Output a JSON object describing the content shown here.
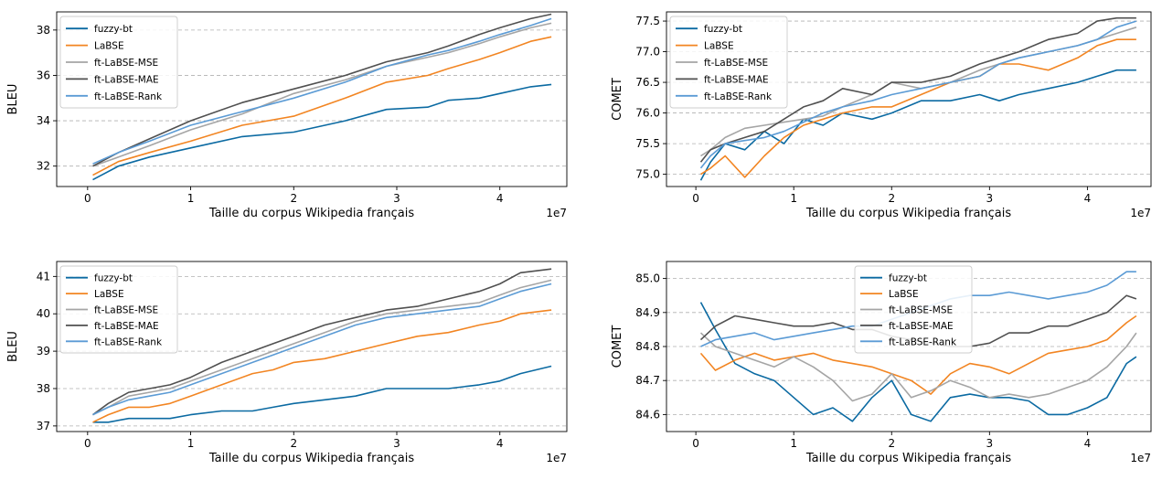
{
  "colors": {
    "fuzzy-bt": "#0b6aa2",
    "LaBSE": "#f28522",
    "ft-LaBSE-MSE": "#a5a5a5",
    "ft-LaBSE-MAE": "#505050",
    "ft-LaBSE-Rank": "#5b9bd5"
  },
  "chart_data": [
    {
      "type": "line",
      "title": "",
      "xlabel": "Taille du corpus Wikipedia français",
      "ylabel": "BLEU",
      "x_offset_label": "1e7",
      "xlim": [
        -0.3,
        4.65
      ],
      "ylim": [
        31.1,
        38.8
      ],
      "xticks": [
        0,
        1,
        2,
        3,
        4
      ],
      "yticks": [
        32,
        34,
        36,
        38
      ],
      "grid": "y-dashed",
      "legend_position": "upper-left",
      "series": [
        {
          "name": "fuzzy-bt",
          "x": [
            0.05,
            0.3,
            0.6,
            1.0,
            1.5,
            2.0,
            2.5,
            2.9,
            3.3,
            3.5,
            3.8,
            4.0,
            4.3,
            4.5
          ],
          "y": [
            31.4,
            32.0,
            32.4,
            32.8,
            33.3,
            33.5,
            34.0,
            34.5,
            34.6,
            34.9,
            35.0,
            35.2,
            35.5,
            35.6
          ]
        },
        {
          "name": "LaBSE",
          "x": [
            0.05,
            0.3,
            0.6,
            1.0,
            1.5,
            2.0,
            2.5,
            2.9,
            3.3,
            3.5,
            3.8,
            4.0,
            4.3,
            4.5
          ],
          "y": [
            31.6,
            32.2,
            32.6,
            33.1,
            33.8,
            34.2,
            35.0,
            35.7,
            36.0,
            36.3,
            36.7,
            37.0,
            37.5,
            37.7
          ]
        },
        {
          "name": "ft-LaBSE-MSE",
          "x": [
            0.05,
            0.3,
            0.6,
            1.0,
            1.5,
            2.0,
            2.5,
            2.9,
            3.3,
            3.5,
            3.8,
            4.0,
            4.3,
            4.5
          ],
          "y": [
            32.0,
            32.4,
            32.9,
            33.6,
            34.3,
            35.2,
            35.8,
            36.4,
            36.8,
            37.0,
            37.4,
            37.7,
            38.1,
            38.3
          ]
        },
        {
          "name": "ft-LaBSE-MAE",
          "x": [
            0.05,
            0.3,
            0.6,
            1.0,
            1.5,
            2.0,
            2.5,
            2.9,
            3.3,
            3.5,
            3.8,
            4.0,
            4.3,
            4.5
          ],
          "y": [
            32.0,
            32.6,
            33.2,
            34.0,
            34.8,
            35.4,
            36.0,
            36.6,
            37.0,
            37.3,
            37.8,
            38.1,
            38.5,
            38.7
          ]
        },
        {
          "name": "ft-LaBSE-Rank",
          "x": [
            0.05,
            0.3,
            0.6,
            1.0,
            1.5,
            2.0,
            2.5,
            2.9,
            3.3,
            3.5,
            3.8,
            4.0,
            4.3,
            4.5
          ],
          "y": [
            32.1,
            32.6,
            33.1,
            33.8,
            34.4,
            35.0,
            35.7,
            36.4,
            36.9,
            37.1,
            37.5,
            37.8,
            38.2,
            38.5
          ]
        }
      ]
    },
    {
      "type": "line",
      "title": "",
      "xlabel": "Taille du corpus Wikipedia français",
      "ylabel": "COMET",
      "x_offset_label": "1e7",
      "xlim": [
        -0.3,
        4.65
      ],
      "ylim": [
        74.8,
        77.65
      ],
      "xticks": [
        0,
        1,
        2,
        3,
        4
      ],
      "yticks": [
        75.0,
        75.5,
        76.0,
        76.5,
        77.0,
        77.5
      ],
      "ytick_labels": [
        "75.0",
        "75.5",
        "76.0",
        "76.5",
        "77.0",
        "77.5"
      ],
      "grid": "y-dashed",
      "legend_position": "upper-left",
      "series": [
        {
          "name": "fuzzy-bt",
          "x": [
            0.05,
            0.15,
            0.3,
            0.5,
            0.7,
            0.9,
            1.1,
            1.3,
            1.5,
            1.8,
            2.0,
            2.3,
            2.6,
            2.9,
            3.1,
            3.3,
            3.6,
            3.9,
            4.1,
            4.3,
            4.5
          ],
          "y": [
            74.9,
            75.2,
            75.5,
            75.4,
            75.7,
            75.5,
            75.9,
            75.8,
            76.0,
            75.9,
            76.0,
            76.2,
            76.2,
            76.3,
            76.2,
            76.3,
            76.4,
            76.5,
            76.6,
            76.7,
            76.7
          ]
        },
        {
          "name": "LaBSE",
          "x": [
            0.05,
            0.15,
            0.3,
            0.5,
            0.7,
            0.9,
            1.1,
            1.3,
            1.5,
            1.8,
            2.0,
            2.3,
            2.6,
            2.9,
            3.1,
            3.3,
            3.6,
            3.9,
            4.1,
            4.3,
            4.5
          ],
          "y": [
            75.0,
            75.1,
            75.3,
            74.95,
            75.3,
            75.6,
            75.8,
            75.9,
            76.0,
            76.1,
            76.1,
            76.3,
            76.5,
            76.6,
            76.8,
            76.8,
            76.7,
            76.9,
            77.1,
            77.2,
            77.2
          ]
        },
        {
          "name": "ft-LaBSE-MSE",
          "x": [
            0.05,
            0.15,
            0.3,
            0.5,
            0.7,
            0.9,
            1.1,
            1.3,
            1.5,
            1.8,
            2.0,
            2.3,
            2.6,
            2.9,
            3.1,
            3.3,
            3.6,
            3.9,
            4.1,
            4.3,
            4.5
          ],
          "y": [
            75.3,
            75.4,
            75.6,
            75.75,
            75.8,
            75.85,
            75.9,
            75.95,
            76.1,
            76.3,
            76.5,
            76.4,
            76.5,
            76.7,
            76.8,
            76.9,
            77.0,
            77.1,
            77.2,
            77.3,
            77.4
          ]
        },
        {
          "name": "ft-LaBSE-MAE",
          "x": [
            0.05,
            0.15,
            0.3,
            0.5,
            0.7,
            0.9,
            1.1,
            1.3,
            1.5,
            1.8,
            2.0,
            2.3,
            2.6,
            2.9,
            3.1,
            3.3,
            3.6,
            3.9,
            4.1,
            4.3,
            4.5
          ],
          "y": [
            75.2,
            75.4,
            75.5,
            75.6,
            75.7,
            75.9,
            76.1,
            76.2,
            76.4,
            76.3,
            76.5,
            76.5,
            76.6,
            76.8,
            76.9,
            77.0,
            77.2,
            77.3,
            77.5,
            77.55,
            77.55
          ]
        },
        {
          "name": "ft-LaBSE-Rank",
          "x": [
            0.05,
            0.15,
            0.3,
            0.5,
            0.7,
            0.9,
            1.1,
            1.3,
            1.5,
            1.8,
            2.0,
            2.3,
            2.6,
            2.9,
            3.1,
            3.3,
            3.6,
            3.9,
            4.1,
            4.3,
            4.5
          ],
          "y": [
            75.1,
            75.3,
            75.5,
            75.55,
            75.6,
            75.7,
            75.85,
            76.0,
            76.1,
            76.2,
            76.3,
            76.4,
            76.5,
            76.6,
            76.8,
            76.9,
            77.0,
            77.1,
            77.2,
            77.4,
            77.5
          ]
        }
      ]
    },
    {
      "type": "line",
      "title": "",
      "xlabel": "Taille du corpus Wikipedia français",
      "ylabel": "BLEU",
      "x_offset_label": "1e7",
      "xlim": [
        -0.3,
        4.65
      ],
      "ylim": [
        36.85,
        41.4
      ],
      "xticks": [
        0,
        1,
        2,
        3,
        4
      ],
      "yticks": [
        37,
        38,
        39,
        40,
        41
      ],
      "grid": "y-dashed",
      "legend_position": "upper-left",
      "series": [
        {
          "name": "fuzzy-bt",
          "x": [
            0.05,
            0.2,
            0.4,
            0.6,
            0.8,
            1.0,
            1.3,
            1.6,
            1.8,
            2.0,
            2.3,
            2.6,
            2.9,
            3.2,
            3.5,
            3.8,
            4.0,
            4.2,
            4.5
          ],
          "y": [
            37.1,
            37.1,
            37.2,
            37.2,
            37.2,
            37.3,
            37.4,
            37.4,
            37.5,
            37.6,
            37.7,
            37.8,
            38.0,
            38.0,
            38.0,
            38.1,
            38.2,
            38.4,
            38.6
          ]
        },
        {
          "name": "LaBSE",
          "x": [
            0.05,
            0.2,
            0.4,
            0.6,
            0.8,
            1.0,
            1.3,
            1.6,
            1.8,
            2.0,
            2.3,
            2.6,
            2.9,
            3.2,
            3.5,
            3.8,
            4.0,
            4.2,
            4.5
          ],
          "y": [
            37.1,
            37.3,
            37.5,
            37.5,
            37.6,
            37.8,
            38.1,
            38.4,
            38.5,
            38.7,
            38.8,
            39.0,
            39.2,
            39.4,
            39.5,
            39.7,
            39.8,
            40.0,
            40.1
          ]
        },
        {
          "name": "ft-LaBSE-MSE",
          "x": [
            0.05,
            0.2,
            0.4,
            0.6,
            0.8,
            1.0,
            1.3,
            1.6,
            1.8,
            2.0,
            2.3,
            2.6,
            2.9,
            3.2,
            3.5,
            3.8,
            4.0,
            4.2,
            4.5
          ],
          "y": [
            37.3,
            37.5,
            37.8,
            37.9,
            38.0,
            38.2,
            38.5,
            38.8,
            39.0,
            39.2,
            39.5,
            39.8,
            40.0,
            40.1,
            40.2,
            40.3,
            40.5,
            40.7,
            40.9
          ]
        },
        {
          "name": "ft-LaBSE-MAE",
          "x": [
            0.05,
            0.2,
            0.4,
            0.6,
            0.8,
            1.0,
            1.3,
            1.6,
            1.8,
            2.0,
            2.3,
            2.6,
            2.9,
            3.2,
            3.5,
            3.8,
            4.0,
            4.2,
            4.5
          ],
          "y": [
            37.3,
            37.6,
            37.9,
            38.0,
            38.1,
            38.3,
            38.7,
            39.0,
            39.2,
            39.4,
            39.7,
            39.9,
            40.1,
            40.2,
            40.4,
            40.6,
            40.8,
            41.1,
            41.2
          ]
        },
        {
          "name": "ft-LaBSE-Rank",
          "x": [
            0.05,
            0.2,
            0.4,
            0.6,
            0.8,
            1.0,
            1.3,
            1.6,
            1.8,
            2.0,
            2.3,
            2.6,
            2.9,
            3.2,
            3.5,
            3.8,
            4.0,
            4.2,
            4.5
          ],
          "y": [
            37.3,
            37.5,
            37.7,
            37.8,
            37.9,
            38.1,
            38.4,
            38.7,
            38.9,
            39.1,
            39.4,
            39.7,
            39.9,
            40.0,
            40.1,
            40.2,
            40.4,
            40.6,
            40.8
          ]
        }
      ]
    },
    {
      "type": "line",
      "title": "",
      "xlabel": "Taille du corpus Wikipedia français",
      "ylabel": "COMET",
      "x_offset_label": "1e7",
      "xlim": [
        -0.3,
        4.65
      ],
      "ylim": [
        84.55,
        85.05
      ],
      "xticks": [
        0,
        1,
        2,
        3,
        4
      ],
      "yticks": [
        84.6,
        84.7,
        84.8,
        84.9,
        85.0
      ],
      "ytick_labels": [
        "84.6",
        "84.7",
        "84.8",
        "84.9",
        "85.0"
      ],
      "grid": "y-dashed",
      "legend_position": "upper-center",
      "series": [
        {
          "name": "fuzzy-bt",
          "x": [
            0.05,
            0.2,
            0.4,
            0.6,
            0.8,
            1.0,
            1.2,
            1.4,
            1.6,
            1.8,
            2.0,
            2.2,
            2.4,
            2.6,
            2.8,
            3.0,
            3.2,
            3.4,
            3.6,
            3.8,
            4.0,
            4.2,
            4.4,
            4.5
          ],
          "y": [
            84.93,
            84.85,
            84.75,
            84.72,
            84.7,
            84.65,
            84.6,
            84.62,
            84.58,
            84.65,
            84.7,
            84.6,
            84.58,
            84.65,
            84.66,
            84.65,
            84.65,
            84.64,
            84.6,
            84.6,
            84.62,
            84.65,
            84.75,
            84.77
          ]
        },
        {
          "name": "LaBSE",
          "x": [
            0.05,
            0.2,
            0.4,
            0.6,
            0.8,
            1.0,
            1.2,
            1.4,
            1.6,
            1.8,
            2.0,
            2.2,
            2.4,
            2.6,
            2.8,
            3.0,
            3.2,
            3.4,
            3.6,
            3.8,
            4.0,
            4.2,
            4.4,
            4.5
          ],
          "y": [
            84.78,
            84.73,
            84.76,
            84.78,
            84.76,
            84.77,
            84.78,
            84.76,
            84.75,
            84.74,
            84.72,
            84.7,
            84.66,
            84.72,
            84.75,
            84.74,
            84.72,
            84.75,
            84.78,
            84.79,
            84.8,
            84.82,
            84.87,
            84.89
          ]
        },
        {
          "name": "ft-LaBSE-MSE",
          "x": [
            0.05,
            0.2,
            0.4,
            0.6,
            0.8,
            1.0,
            1.2,
            1.4,
            1.6,
            1.8,
            2.0,
            2.2,
            2.4,
            2.6,
            2.8,
            3.0,
            3.2,
            3.4,
            3.6,
            3.8,
            4.0,
            4.2,
            4.4,
            4.5
          ],
          "y": [
            84.84,
            84.8,
            84.78,
            84.76,
            84.74,
            84.77,
            84.74,
            84.7,
            84.64,
            84.66,
            84.72,
            84.65,
            84.67,
            84.7,
            84.68,
            84.65,
            84.66,
            84.65,
            84.66,
            84.68,
            84.7,
            84.74,
            84.8,
            84.84
          ]
        },
        {
          "name": "ft-LaBSE-MAE",
          "x": [
            0.05,
            0.2,
            0.4,
            0.6,
            0.8,
            1.0,
            1.2,
            1.4,
            1.6,
            1.8,
            2.0,
            2.2,
            2.4,
            2.6,
            2.8,
            3.0,
            3.2,
            3.4,
            3.6,
            3.8,
            4.0,
            4.2,
            4.4,
            4.5
          ],
          "y": [
            84.82,
            84.86,
            84.89,
            84.88,
            84.87,
            84.86,
            84.86,
            84.87,
            84.85,
            84.85,
            84.83,
            84.82,
            84.81,
            84.8,
            84.8,
            84.81,
            84.84,
            84.84,
            84.86,
            84.86,
            84.88,
            84.9,
            84.95,
            84.94
          ]
        },
        {
          "name": "ft-LaBSE-Rank",
          "x": [
            0.05,
            0.2,
            0.4,
            0.6,
            0.8,
            1.0,
            1.2,
            1.4,
            1.6,
            1.8,
            2.0,
            2.2,
            2.4,
            2.6,
            2.8,
            3.0,
            3.2,
            3.4,
            3.6,
            3.8,
            4.0,
            4.2,
            4.4,
            4.5
          ],
          "y": [
            84.8,
            84.82,
            84.83,
            84.84,
            84.82,
            84.83,
            84.84,
            84.85,
            84.86,
            84.86,
            84.88,
            84.9,
            84.92,
            84.94,
            84.95,
            84.95,
            84.96,
            84.95,
            84.94,
            84.95,
            84.96,
            84.98,
            85.02,
            85.02
          ]
        }
      ]
    }
  ]
}
